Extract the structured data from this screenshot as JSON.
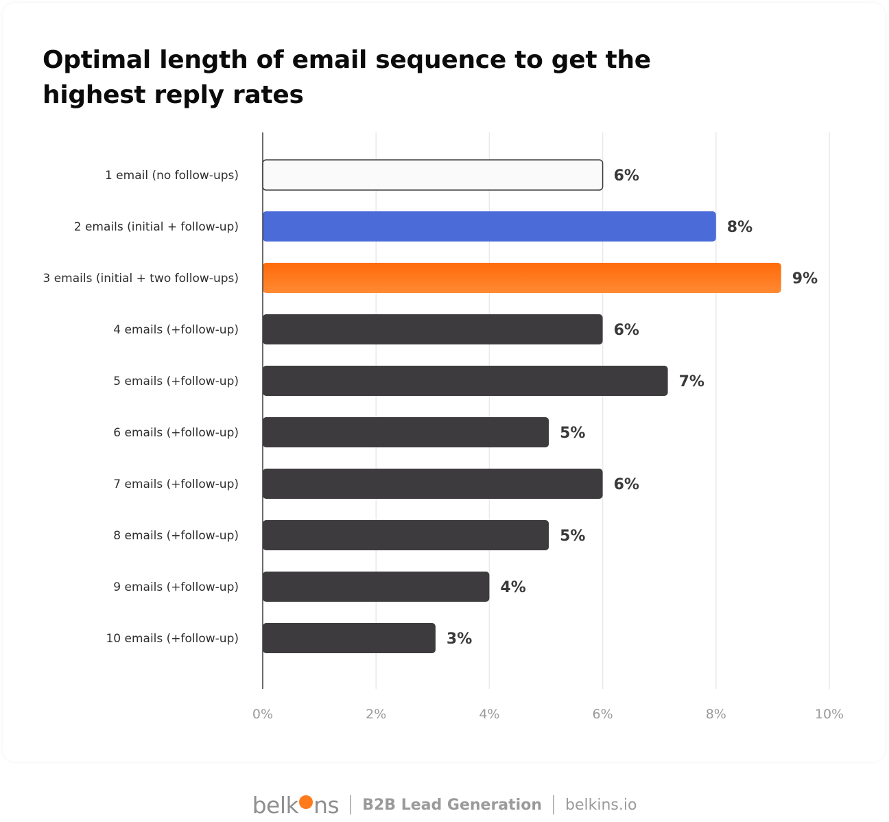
{
  "chart_data": {
    "type": "bar",
    "orientation": "horizontal",
    "title": "Optimal length of email sequence to get the highest reply rates",
    "categories": [
      "1 email (no follow-ups)",
      "2 emails (initial + follow-up)",
      "3 emails (initial + two follow-ups)",
      "4 emails (+follow-up)",
      "5 emails (+follow-up)",
      "6 emails (+follow-up)",
      "7 emails (+follow-up)",
      "8 emails (+follow-up)",
      "9 emails (+follow-up)",
      "10 emails (+follow-up)"
    ],
    "values": [
      6.0,
      8.0,
      9.15,
      6.0,
      7.15,
      5.05,
      6.0,
      5.05,
      4.0,
      3.05
    ],
    "value_labels": [
      "6%",
      "8%",
      "9%",
      "6%",
      "7%",
      "5%",
      "6%",
      "5%",
      "4%",
      "3%"
    ],
    "bar_colors": [
      "#fafafa",
      "#4a6bd8",
      "#ff7418",
      "#3d3b3e",
      "#3d3b3e",
      "#3d3b3e",
      "#3d3b3e",
      "#3d3b3e",
      "#3d3b3e",
      "#3d3b3e"
    ],
    "xlim": [
      0,
      10
    ],
    "xticks": [
      0,
      2,
      4,
      6,
      8,
      10
    ],
    "xtick_labels": [
      "0%",
      "2%",
      "4%",
      "6%",
      "8%",
      "10%"
    ],
    "grid": true,
    "xlabel": "",
    "ylabel": ""
  },
  "footer": {
    "brand_left": "belk",
    "brand_right": "ns",
    "tagline": "B2B Lead Generation",
    "site": "belkins.io"
  },
  "colors": {
    "axis": "#3a3a3a",
    "grid": "#e9e9e9",
    "label_text": "#2e2e2e",
    "value_text": "#3a3a3a",
    "tick_text": "#9a9a9a",
    "outline_bar_stroke": "#3d3b3e"
  }
}
